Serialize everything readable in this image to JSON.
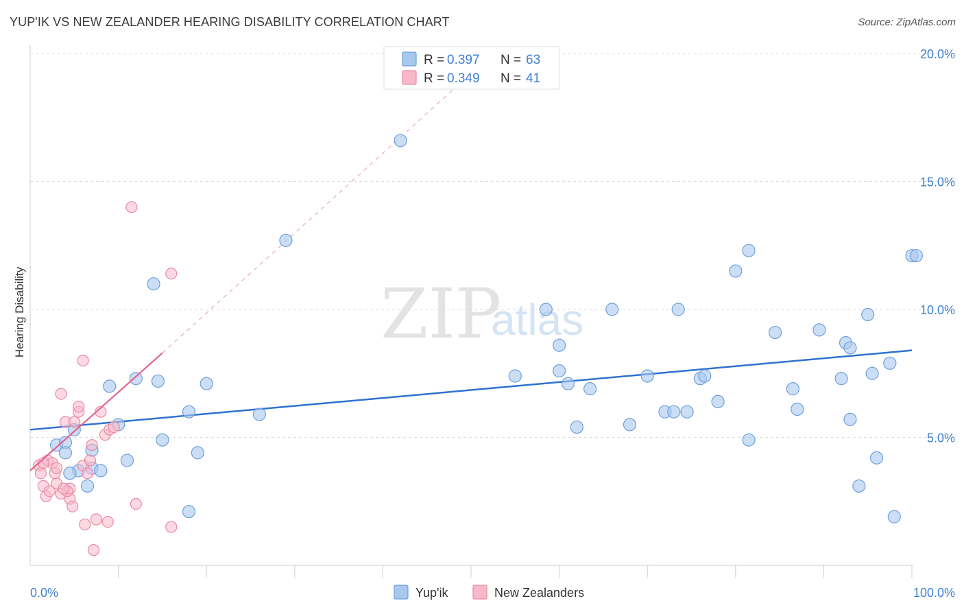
{
  "header": {
    "title": "YUP'IK VS NEW ZEALANDER HEARING DISABILITY CORRELATION CHART",
    "source": "Source: ZipAtlas.com"
  },
  "watermark": {
    "zip": "ZIP",
    "atlas": "atlas"
  },
  "colors": {
    "blue_fill": "#a9c8ee",
    "blue_stroke": "#6f9fdc",
    "blue_line": "#2f72d0",
    "pink_fill": "#f7b8ca",
    "pink_stroke": "#e98aa6",
    "pink_line": "#e2628e",
    "tick_text": "#3f7fd0",
    "grid": "#dddddd"
  },
  "legend": {
    "rows": [
      {
        "r_label": "R =",
        "r_value": "0.397",
        "n_label": "N =",
        "n_value": "63"
      },
      {
        "r_label": "R =",
        "r_value": "0.349",
        "n_label": "N =",
        "n_value": "41"
      }
    ]
  },
  "bottom_legend": [
    "Yup'ik",
    "New Zealanders"
  ],
  "chart_data": {
    "type": "scatter",
    "title": "YUP'IK VS NEW ZEALANDER HEARING DISABILITY CORRELATION CHART",
    "xlabel": "",
    "ylabel": "Hearing Disability",
    "xlim": [
      0,
      100
    ],
    "ylim": [
      0,
      20
    ],
    "x_tick_labels": [
      "0.0%",
      "100.0%"
    ],
    "y_ticks": [
      5,
      10,
      15,
      20
    ],
    "y_tick_labels": [
      "5.0%",
      "10.0%",
      "15.0%",
      "20.0%"
    ],
    "grid": true,
    "series": [
      {
        "name": "Yup'ik",
        "R": 0.397,
        "N": 63,
        "trend": {
          "x0": 0,
          "y0": 5.3,
          "x1": 100,
          "y1": 8.4
        },
        "points": [
          [
            3.0,
            4.7
          ],
          [
            4.0,
            4.8
          ],
          [
            5.0,
            5.3
          ],
          [
            4.0,
            4.4
          ],
          [
            7.0,
            4.5
          ],
          [
            5.5,
            3.7
          ],
          [
            7.0,
            3.8
          ],
          [
            6.5,
            3.1
          ],
          [
            8.0,
            3.7
          ],
          [
            4.5,
            3.6
          ],
          [
            9.0,
            7.0
          ],
          [
            10.0,
            5.5
          ],
          [
            12.0,
            7.3
          ],
          [
            11.0,
            4.1
          ],
          [
            14.0,
            11.0
          ],
          [
            14.5,
            7.2
          ],
          [
            15.0,
            4.9
          ],
          [
            18.0,
            6.0
          ],
          [
            18.0,
            2.1
          ],
          [
            19.0,
            4.4
          ],
          [
            20.0,
            7.1
          ],
          [
            26.0,
            5.9
          ],
          [
            29.0,
            12.7
          ],
          [
            42.0,
            16.6
          ],
          [
            55.0,
            7.4
          ],
          [
            58.5,
            10.0
          ],
          [
            60.0,
            7.6
          ],
          [
            60.0,
            8.6
          ],
          [
            61.0,
            7.1
          ],
          [
            62.0,
            5.4
          ],
          [
            63.5,
            6.9
          ],
          [
            66.0,
            10.0
          ],
          [
            68.0,
            5.5
          ],
          [
            70.0,
            7.4
          ],
          [
            72.0,
            6.0
          ],
          [
            73.5,
            10.0
          ],
          [
            73.0,
            6.0
          ],
          [
            74.5,
            6.0
          ],
          [
            76.0,
            7.3
          ],
          [
            76.5,
            7.4
          ],
          [
            78.0,
            6.4
          ],
          [
            80.0,
            11.5
          ],
          [
            81.5,
            12.3
          ],
          [
            81.5,
            4.9
          ],
          [
            84.5,
            9.1
          ],
          [
            86.5,
            6.9
          ],
          [
            87.0,
            6.1
          ],
          [
            89.5,
            9.2
          ],
          [
            92.0,
            7.3
          ],
          [
            92.5,
            8.7
          ],
          [
            93.0,
            8.5
          ],
          [
            93.0,
            5.7
          ],
          [
            94.0,
            3.1
          ],
          [
            95.0,
            9.8
          ],
          [
            95.5,
            7.5
          ],
          [
            96.0,
            4.2
          ],
          [
            97.5,
            7.9
          ],
          [
            98.0,
            1.9
          ],
          [
            100.0,
            12.1
          ],
          [
            100.5,
            12.1
          ]
        ]
      },
      {
        "name": "New Zealanders",
        "R": 0.349,
        "N": 41,
        "trend": {
          "x0": 0,
          "y0": 3.7,
          "x1": 15,
          "y1": 8.3
        },
        "trend_dashed_to": {
          "x": 48,
          "y": 18.6
        },
        "points": [
          [
            1.0,
            3.9
          ],
          [
            1.2,
            3.6
          ],
          [
            1.5,
            3.1
          ],
          [
            1.8,
            2.7
          ],
          [
            2.0,
            4.1
          ],
          [
            2.5,
            4.0
          ],
          [
            3.0,
            3.2
          ],
          [
            3.5,
            2.8
          ],
          [
            2.8,
            3.6
          ],
          [
            3.0,
            3.8
          ],
          [
            3.5,
            6.7
          ],
          [
            4.0,
            5.6
          ],
          [
            4.5,
            3.0
          ],
          [
            4.5,
            2.6
          ],
          [
            4.8,
            2.3
          ],
          [
            5.0,
            5.6
          ],
          [
            5.5,
            6.0
          ],
          [
            5.5,
            6.2
          ],
          [
            6.0,
            3.9
          ],
          [
            6.5,
            3.6
          ],
          [
            6.8,
            4.1
          ],
          [
            7.0,
            4.7
          ],
          [
            7.5,
            1.8
          ],
          [
            8.0,
            6.0
          ],
          [
            8.5,
            5.1
          ],
          [
            9.0,
            5.3
          ],
          [
            9.5,
            5.4
          ],
          [
            8.8,
            1.7
          ],
          [
            7.2,
            0.6
          ],
          [
            6.0,
            8.0
          ],
          [
            11.5,
            14.0
          ],
          [
            12.0,
            2.4
          ],
          [
            16.0,
            11.4
          ],
          [
            16.0,
            1.5
          ],
          [
            4.2,
            2.9
          ],
          [
            3.8,
            3.0
          ],
          [
            2.2,
            2.9
          ],
          [
            1.5,
            4.0
          ],
          [
            6.2,
            1.6
          ]
        ]
      }
    ]
  }
}
